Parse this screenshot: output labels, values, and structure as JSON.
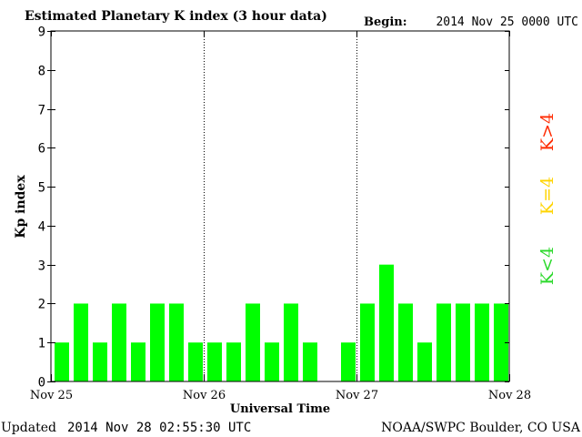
{
  "header": {
    "title": "Estimated Planetary K index (3 hour data)",
    "begin_label": "Begin:",
    "begin_value": "2014 Nov 25 0000 UTC"
  },
  "footer": {
    "updated_label": "Updated",
    "updated_value": "2014 Nov 28 02:55:30 UTC",
    "source": "NOAA/SWPC Boulder, CO USA"
  },
  "legend": {
    "items": [
      {
        "label": "K>4",
        "color": "#ff2a00"
      },
      {
        "label": "K=4",
        "color": "#ffd400"
      },
      {
        "label": "K<4",
        "color": "#2bd92b"
      }
    ]
  },
  "chart_data": {
    "type": "bar",
    "title": "Estimated Planetary K index (3 hour data)",
    "xlabel": "Universal Time",
    "ylabel": "Kp index",
    "ylim": [
      0,
      9
    ],
    "yticks": [
      "0",
      "1",
      "2",
      "3",
      "4",
      "5",
      "6",
      "7",
      "8",
      "9"
    ],
    "xticks": [
      "Nov 25",
      "Nov 26",
      "Nov 27",
      "Nov 28"
    ],
    "grid": true,
    "bar_color": "#00ff00",
    "values": [
      1,
      2,
      1,
      2,
      1,
      2,
      2,
      1,
      1,
      1,
      2,
      1,
      2,
      1,
      0,
      1,
      2,
      3,
      2,
      1,
      2,
      2,
      2,
      2
    ]
  }
}
